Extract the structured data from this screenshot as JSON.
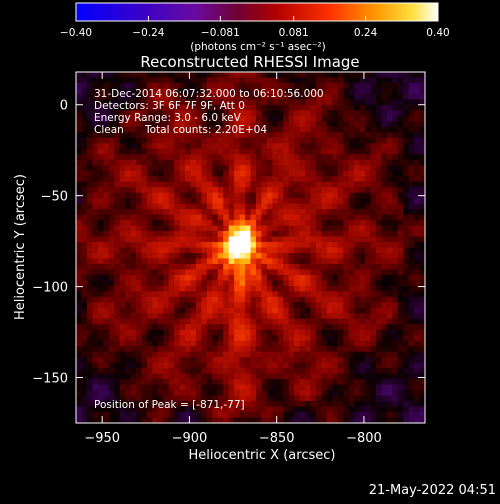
{
  "chart_data": {
    "type": "heatmap",
    "title": "Reconstructed RHESSI Image",
    "xlabel": "Heliocentric X (arcsec)",
    "ylabel": "Heliocentric Y (arcsec)",
    "xlim": [
      -965,
      -765
    ],
    "ylim": [
      -175,
      18
    ],
    "x_ticks": [
      -950,
      -900,
      -850,
      -800
    ],
    "x_tick_labels": [
      "−950",
      "−900",
      "−850",
      "−800"
    ],
    "y_ticks": [
      0,
      -50,
      -100,
      -150
    ],
    "y_tick_labels": [
      "0",
      "−50",
      "−100",
      "−150"
    ],
    "colorbar": {
      "min": -0.4,
      "max": 0.4,
      "ticks": [
        -0.4,
        -0.24,
        -0.081,
        0.081,
        0.24,
        0.4
      ],
      "tick_labels": [
        "−0.40",
        "−0.24",
        "−0.081",
        "0.081",
        "0.24",
        "0.40"
      ],
      "label": "(photons cm⁻² s⁻¹ asec⁻²)"
    },
    "source": {
      "x": -871,
      "y": -77,
      "peak": 0.4
    },
    "annotations": {
      "time_range": "31-Dec-2014 06:07:32.000 to 06:10:56.000",
      "detectors": "Detectors: 3F 6F 7F 9F, Att 0",
      "energy": "Energy Range: 3.0 - 6.0 keV",
      "method": "Clean",
      "counts": "Total counts: 2.20E+04",
      "peak": "Position of Peak = [-871,-77]"
    }
  },
  "footer": {
    "timestamp": "21-May-2022 04:51"
  }
}
